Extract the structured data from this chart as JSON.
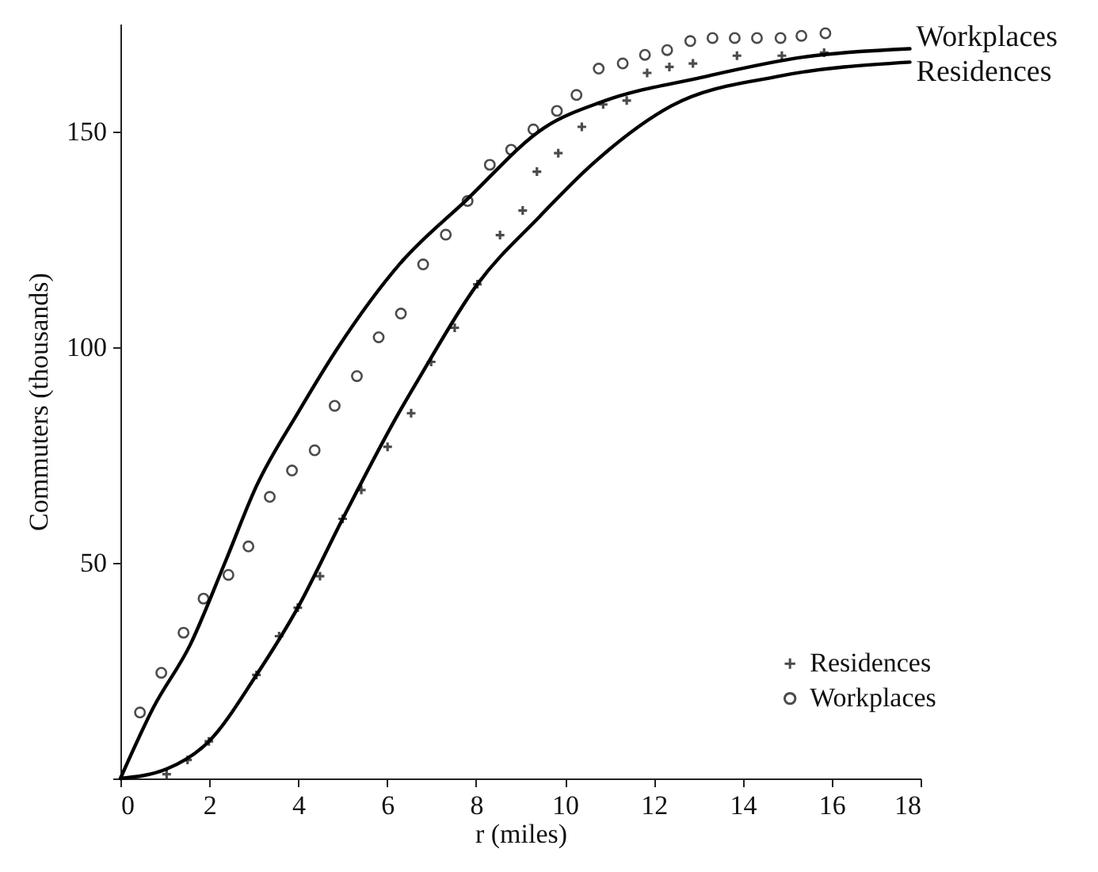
{
  "chart_data": {
    "type": "scatter",
    "xlabel": "r (miles)",
    "ylabel": "Commuters (thousands)",
    "xlim": [
      0,
      18
    ],
    "xticks": [
      0,
      2,
      4,
      6,
      8,
      10,
      12,
      14,
      16,
      18
    ],
    "ylim": [
      0,
      175
    ],
    "yticks": [
      {
        "value": 0,
        "label": null
      },
      50,
      100,
      150
    ],
    "grid": false,
    "legend": "bottom right",
    "series": [
      {
        "name": "Residences",
        "type": "scatter",
        "marker": "cross",
        "color": "#000000",
        "x": [
          1.04,
          1.51,
          1.99,
          3.06,
          3.57,
          3.99,
          4.49,
          5.0,
          5.42,
          6.01,
          6.54,
          6.99,
          7.52,
          8.03,
          8.54,
          9.05,
          9.37,
          9.85,
          10.38,
          10.86,
          11.39,
          11.85,
          12.35,
          12.88,
          13.87,
          14.88,
          15.83
        ],
        "values": [
          1,
          4.3,
          8.6,
          24,
          33,
          39.6,
          46.9,
          60.2,
          66.9,
          76.9,
          84.7,
          96.6,
          104.5,
          114.6,
          126,
          131.7,
          140.7,
          145,
          151.1,
          156.3,
          157.2,
          163.6,
          165,
          165.8,
          167.6,
          167.6,
          168.3
        ]
      },
      {
        "name": "Workplaces",
        "type": "scatter",
        "marker": "circle",
        "color": "#000000",
        "x": [
          0.44,
          0.92,
          1.42,
          1.87,
          2.43,
          2.88,
          3.36,
          3.86,
          4.37,
          4.82,
          5.32,
          5.81,
          6.31,
          6.81,
          7.32,
          7.81,
          8.31,
          8.79,
          9.29,
          9.82,
          10.26,
          10.76,
          11.3,
          11.8,
          12.3,
          12.82,
          13.32,
          13.82,
          14.32,
          14.85,
          15.32,
          15.86
        ],
        "values": [
          15.3,
          24.5,
          33.8,
          41.7,
          47.2,
          53.8,
          65.3,
          71.4,
          76.1,
          86.4,
          93.3,
          102.3,
          107.8,
          119.2,
          126.1,
          133.9,
          142.3,
          145.8,
          150.5,
          154.8,
          158.5,
          164.6,
          165.8,
          167.8,
          168.9,
          171,
          171.7,
          171.7,
          171.7,
          171.7,
          172.2,
          172.8
        ]
      },
      {
        "name": "Workplaces",
        "type": "line",
        "color": "#000000",
        "x": [
          0,
          0.74,
          1.57,
          2.35,
          3.06,
          4.0,
          4.9,
          6.3,
          7.76,
          9.55,
          10.86,
          13.0,
          15.38,
          17.76
        ],
        "values": [
          0,
          16.4,
          31,
          50,
          67.8,
          84.9,
          100,
          119.5,
          133.9,
          151,
          157,
          162.4,
          167.3,
          169.2
        ]
      },
      {
        "name": "Residences",
        "type": "line",
        "color": "#000000",
        "x": [
          0,
          1.04,
          1.99,
          3.06,
          3.99,
          5.0,
          6.27,
          6.69,
          8.03,
          9.43,
          10.62,
          12.4,
          14.79,
          17.76
        ],
        "values": [
          0,
          2.2,
          8.6,
          24,
          39.6,
          60.2,
          84.9,
          92.3,
          114.6,
          130.3,
          142.5,
          156,
          162.8,
          166.1
        ]
      }
    ]
  }
}
